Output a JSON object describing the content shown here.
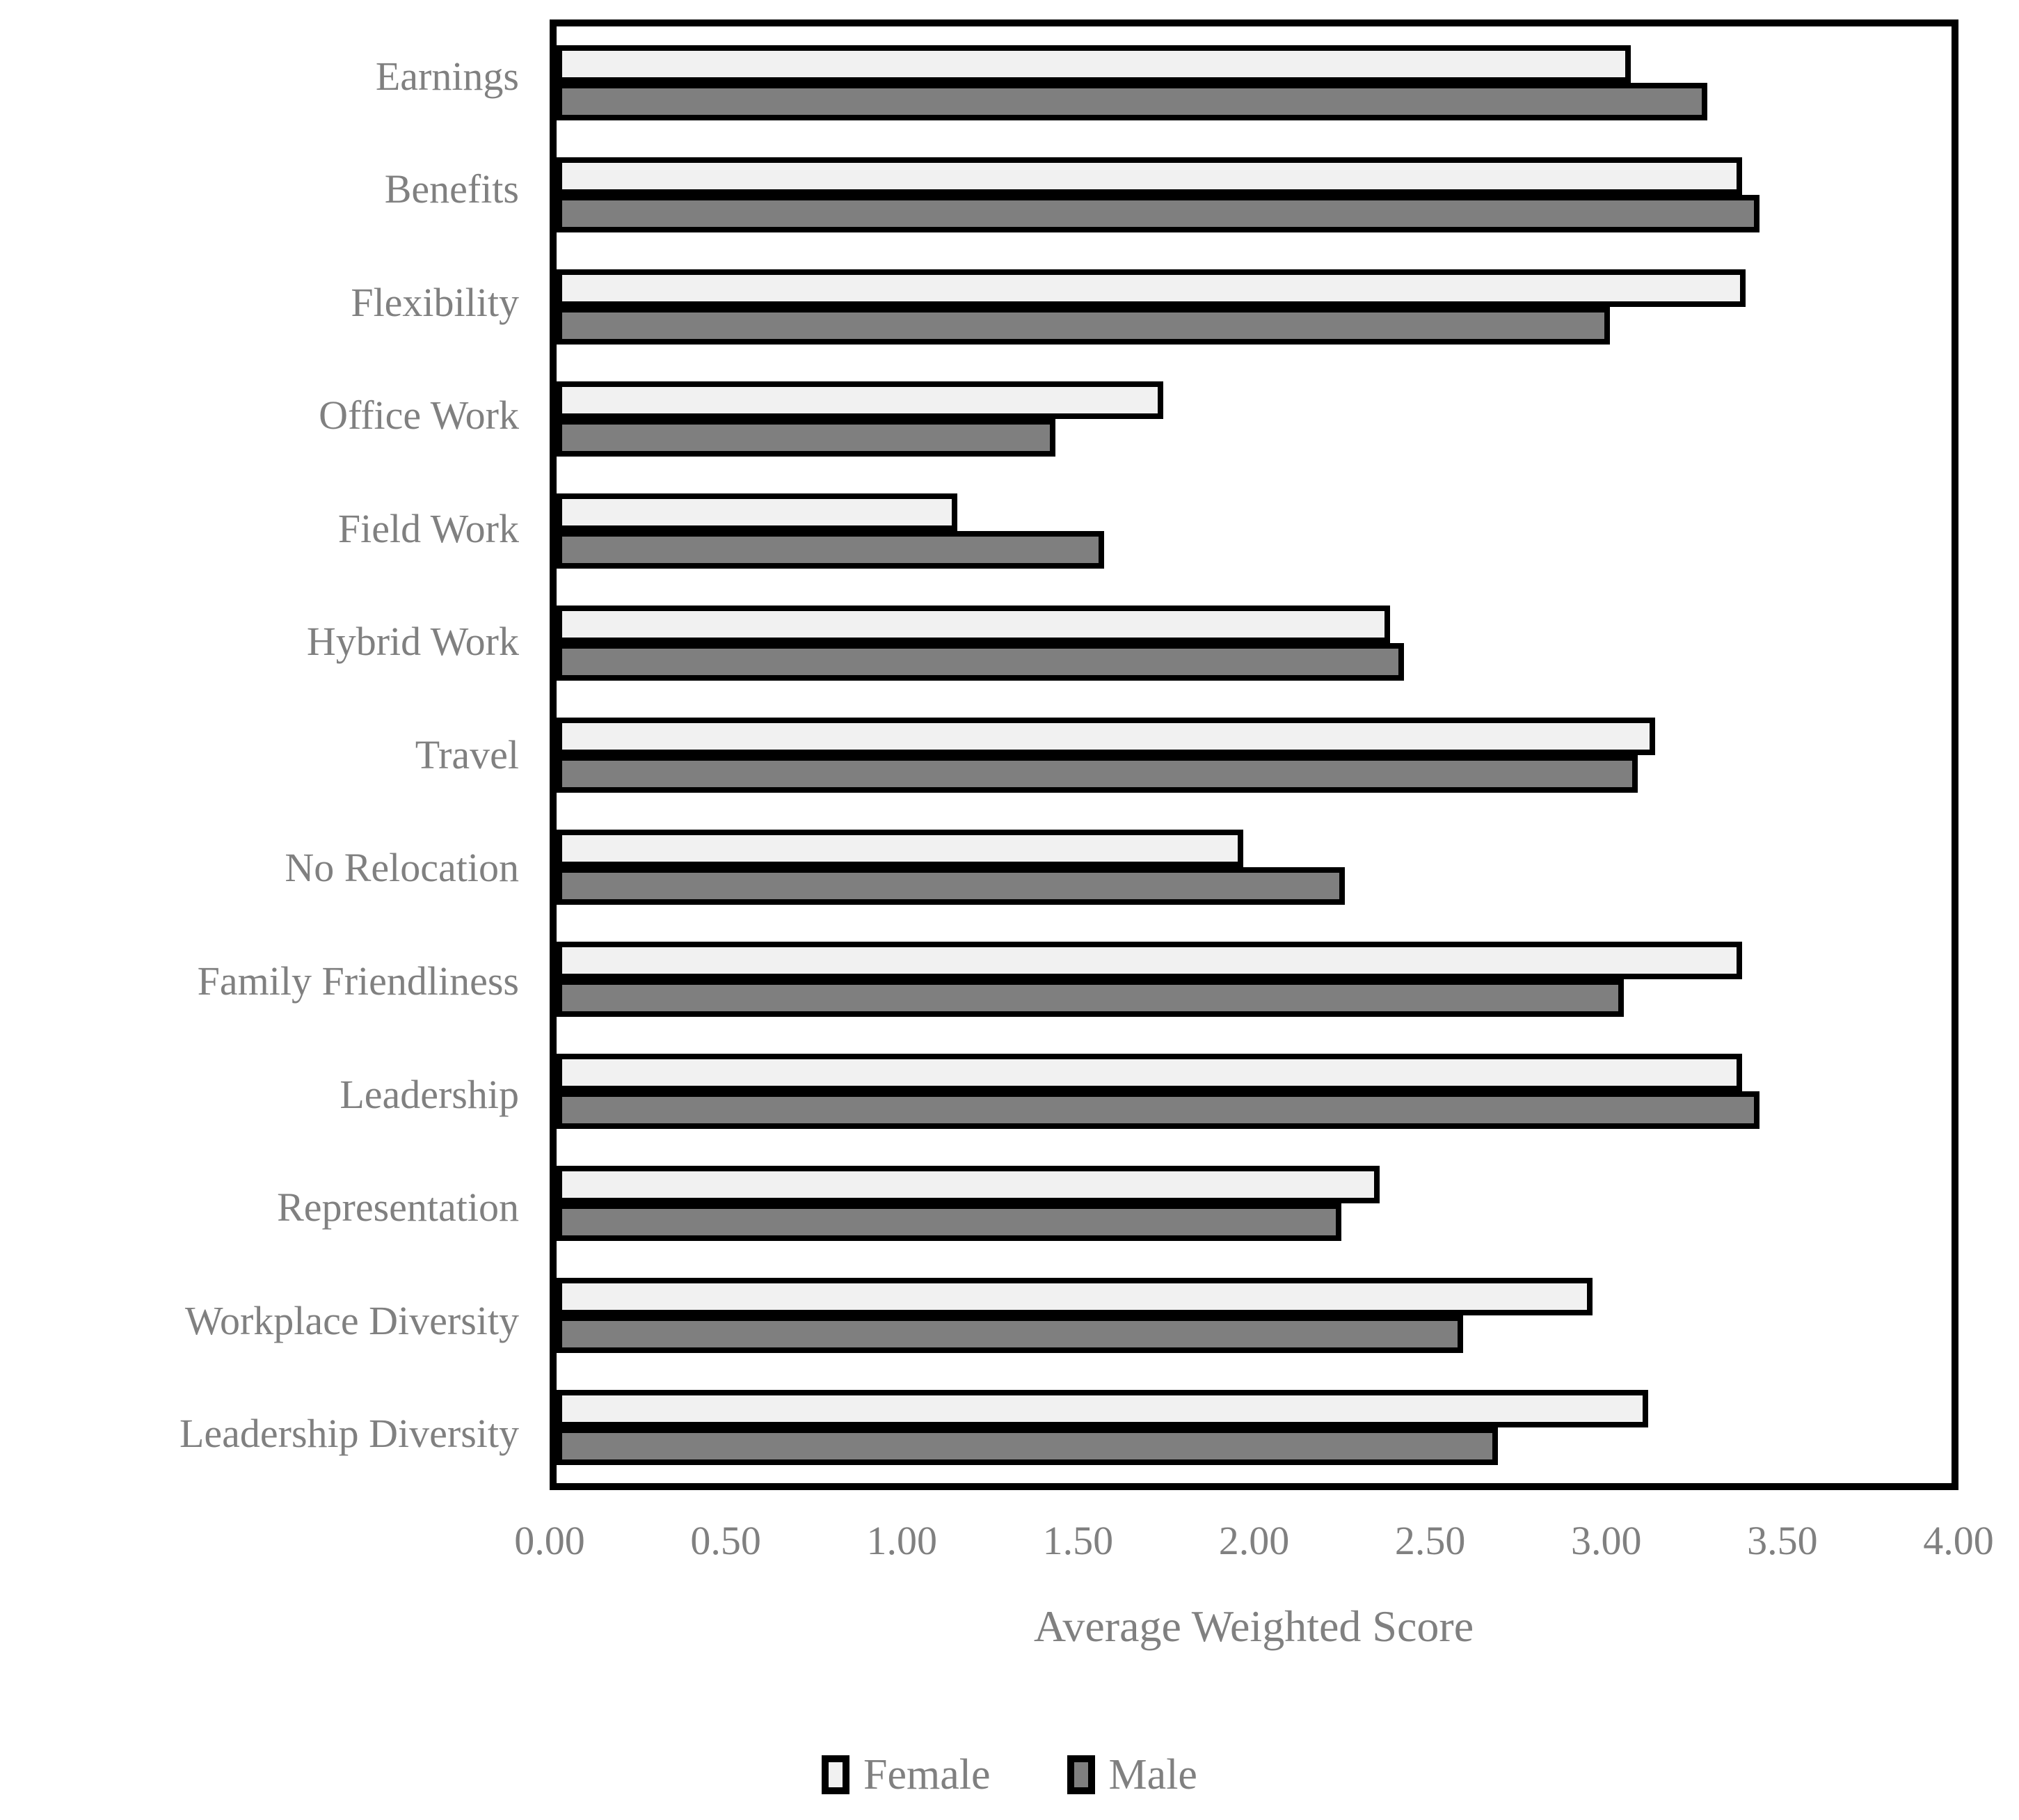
{
  "chart_data": {
    "type": "bar",
    "orientation": "horizontal",
    "title": "",
    "xlabel": "Average Weighted Score",
    "ylabel": "",
    "xlim": [
      0,
      4
    ],
    "x_ticks": [
      "0.00",
      "0.50",
      "1.00",
      "1.50",
      "2.00",
      "2.50",
      "3.00",
      "3.50",
      "4.00"
    ],
    "grid": false,
    "legend_position": "bottom",
    "categories": [
      "Earnings",
      "Benefits",
      "Flexibility",
      "Office Work",
      "Field Work",
      "Hybrid Work",
      "Travel",
      "No Relocation",
      "Family Friendliness",
      "Leadership",
      "Representation",
      "Workplace Diversity",
      "Leadership Diversity"
    ],
    "series": [
      {
        "name": "Female",
        "color": "#f1f1f1",
        "border_color": "#000000",
        "values": [
          3.08,
          3.4,
          3.41,
          1.74,
          1.15,
          2.39,
          3.15,
          1.97,
          3.4,
          3.4,
          2.36,
          2.97,
          3.13
        ]
      },
      {
        "name": "Male",
        "color": "#7f7f7f",
        "border_color": "#000000",
        "values": [
          3.3,
          3.45,
          3.02,
          1.43,
          1.57,
          2.43,
          3.1,
          2.26,
          3.06,
          3.45,
          2.25,
          2.6,
          2.7
        ]
      }
    ],
    "text_color": "#808080",
    "axis_color": "#000000"
  }
}
